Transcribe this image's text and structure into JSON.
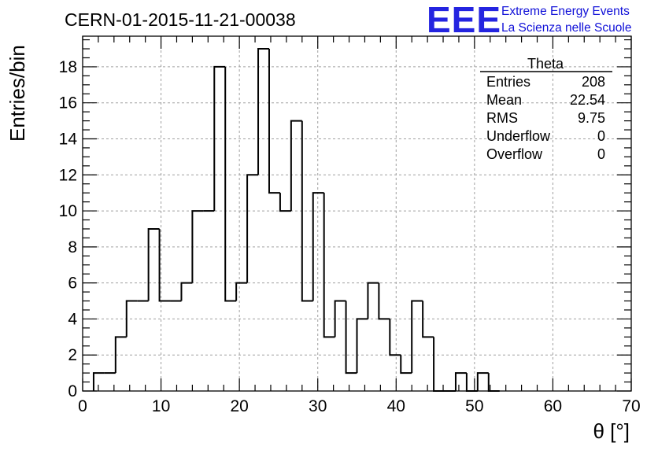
{
  "header": {
    "run_title": "CERN-01-2015-11-21-00038",
    "logo_text": "EEE",
    "org_line1": "Extreme Energy Events",
    "org_line2": "La Scienza nelle Scuole"
  },
  "colors": {
    "logo": "#2424e0",
    "org_text": "#1010d8",
    "histogram_line": "#000000",
    "grid": "#a0a0a0"
  },
  "stats_box": {
    "title": "Theta",
    "rows": [
      {
        "label": "Entries",
        "value": "208"
      },
      {
        "label": "Mean",
        "value": "22.54"
      },
      {
        "label": "RMS",
        "value": "9.75"
      },
      {
        "label": "Underflow",
        "value": "0"
      },
      {
        "label": "Overflow",
        "value": "0"
      }
    ]
  },
  "chart_data": {
    "type": "histogram",
    "title": "CERN-01-2015-11-21-00038",
    "xlabel": "θ [°]",
    "ylabel": "Entries/bin",
    "xlim": [
      0,
      70
    ],
    "ylim": [
      0,
      19.7
    ],
    "xticks": [
      0,
      10,
      20,
      30,
      40,
      50,
      60,
      70
    ],
    "yticks": [
      0,
      2,
      4,
      6,
      8,
      10,
      12,
      14,
      16,
      18
    ],
    "grid": true,
    "bin_width": 1.4,
    "bin_start": 1.4,
    "values": [
      1,
      1,
      3,
      5,
      5,
      9,
      5,
      5,
      6,
      10,
      10,
      18,
      5,
      6,
      12,
      19,
      11,
      10,
      15,
      5,
      11,
      3,
      5,
      1,
      4,
      6,
      4,
      2,
      1,
      5,
      3,
      0,
      0,
      1,
      0,
      1,
      0
    ]
  }
}
